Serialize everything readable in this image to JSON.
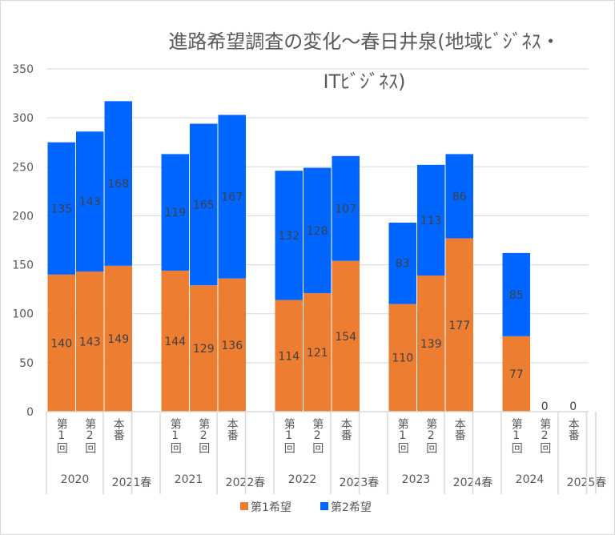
{
  "chart_data": {
    "type": "bar",
    "stacked": true,
    "title_lines": [
      "進路希望調査の変化～春日井泉(地域ﾋﾞｼﾞﾈｽ・",
      "ITﾋﾞｼﾞﾈｽ)"
    ],
    "ylim": [
      0,
      350
    ],
    "yticks": [
      0,
      50,
      100,
      150,
      200,
      250,
      300,
      350
    ],
    "grid": true,
    "legend_position": "bottom",
    "groups": [
      {
        "label_a": "2020",
        "label_b": "2021春",
        "categories": [
          "第1回",
          "第2回",
          "本番"
        ]
      },
      {
        "label_a": "2021",
        "label_b": "2022春",
        "categories": [
          "第1回",
          "第2回",
          "本番"
        ]
      },
      {
        "label_a": "2022",
        "label_b": "2023春",
        "categories": [
          "第1回",
          "第2回",
          "本番"
        ]
      },
      {
        "label_a": "2023",
        "label_b": "2024春",
        "categories": [
          "第1回",
          "第2回",
          "本番"
        ]
      },
      {
        "label_a": "2024",
        "label_b": "2025春",
        "categories": [
          "第1回",
          "第2回",
          "本番"
        ]
      }
    ],
    "series": [
      {
        "name": "第1希望",
        "color": "#ED7D31",
        "values": [
          140,
          143,
          149,
          144,
          129,
          136,
          114,
          121,
          154,
          110,
          139,
          177,
          77,
          0,
          0
        ]
      },
      {
        "name": "第2希望",
        "color": "#0066FF",
        "values": [
          135,
          143,
          168,
          119,
          165,
          167,
          132,
          128,
          107,
          83,
          113,
          86,
          85,
          0,
          0
        ]
      }
    ]
  }
}
